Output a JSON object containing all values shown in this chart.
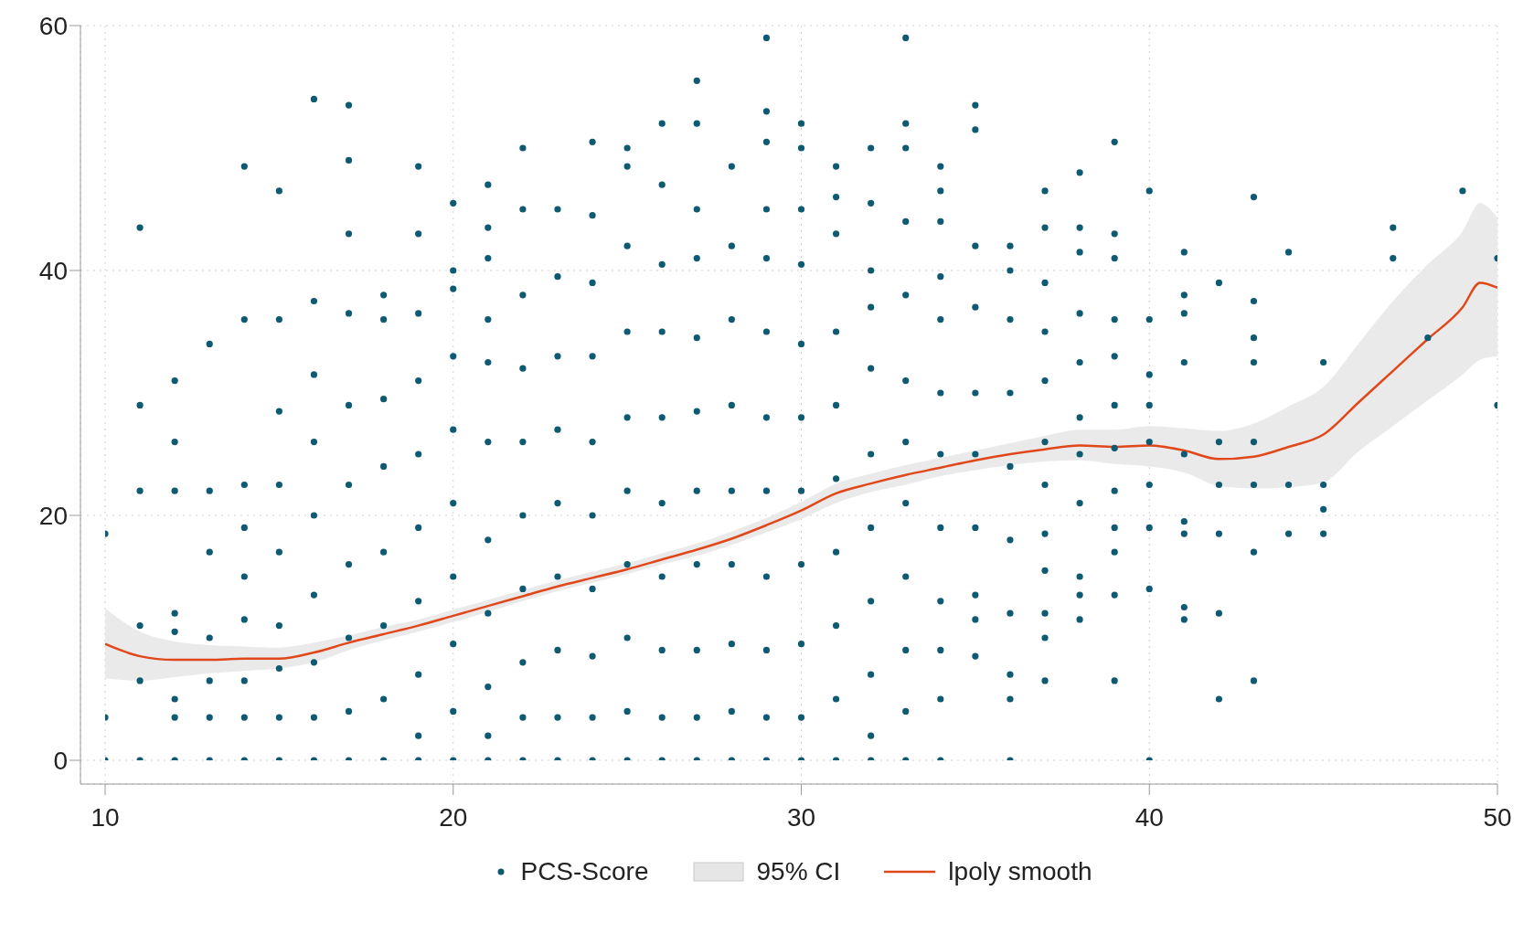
{
  "chart_data": {
    "type": "scatter",
    "xlim": [
      10,
      50
    ],
    "ylim": [
      0,
      60
    ],
    "xticks": [
      10,
      20,
      30,
      40,
      50
    ],
    "yticks": [
      0,
      20,
      40,
      60
    ],
    "grid": true,
    "legend": "bottom",
    "annotations": [
      "95% CI"
    ],
    "series": [
      {
        "name": "PCS-Score",
        "marker": "circle",
        "color": "#0f5a73",
        "x": [
          10,
          10,
          10,
          11,
          11,
          11,
          11,
          11,
          11,
          12,
          12,
          12,
          12,
          12,
          12,
          12,
          12,
          13,
          13,
          13,
          13,
          13,
          13,
          13,
          14,
          14,
          14,
          14,
          14,
          14,
          14,
          14,
          14,
          15,
          15,
          15,
          15,
          15,
          15,
          15,
          15,
          15,
          16,
          16,
          16,
          16,
          16,
          16,
          16,
          16,
          16,
          17,
          17,
          17,
          17,
          17,
          17,
          17,
          17,
          17,
          17,
          18,
          18,
          18,
          18,
          18,
          18,
          18,
          18,
          19,
          19,
          19,
          19,
          19,
          19,
          19,
          19,
          19,
          19,
          20,
          20,
          20,
          20,
          20,
          20,
          20,
          20,
          20,
          20,
          21,
          21,
          21,
          21,
          21,
          21,
          21,
          21,
          21,
          21,
          21,
          22,
          22,
          22,
          22,
          22,
          22,
          22,
          22,
          22,
          22,
          23,
          23,
          23,
          23,
          23,
          23,
          23,
          23,
          23,
          24,
          24,
          24,
          24,
          24,
          24,
          24,
          24,
          24,
          24,
          25,
          25,
          25,
          25,
          25,
          25,
          25,
          25,
          25,
          25,
          26,
          26,
          26,
          26,
          26,
          26,
          26,
          26,
          26,
          26,
          27,
          27,
          27,
          27,
          27,
          27,
          27,
          27,
          27,
          27,
          27,
          28,
          28,
          28,
          28,
          28,
          28,
          28,
          28,
          28,
          29,
          29,
          29,
          29,
          29,
          29,
          29,
          29,
          29,
          29,
          29,
          29,
          30,
          30,
          30,
          30,
          30,
          30,
          30,
          30,
          30,
          30,
          30,
          31,
          31,
          31,
          31,
          31,
          31,
          31,
          31,
          31,
          31,
          32,
          32,
          32,
          32,
          32,
          32,
          32,
          32,
          32,
          32,
          32,
          33,
          33,
          33,
          33,
          33,
          33,
          33,
          33,
          33,
          33,
          33,
          33,
          34,
          34,
          34,
          34,
          34,
          34,
          34,
          34,
          34,
          34,
          34,
          34,
          35,
          35,
          35,
          35,
          35,
          35,
          35,
          35,
          35,
          35,
          36,
          36,
          36,
          36,
          36,
          36,
          36,
          36,
          36,
          36,
          37,
          37,
          37,
          37,
          37,
          37,
          37,
          37,
          37,
          37,
          37,
          37,
          38,
          38,
          38,
          38,
          38,
          38,
          38,
          38,
          38,
          38,
          38,
          39,
          39,
          39,
          39,
          39,
          39,
          39,
          39,
          39,
          39,
          39,
          39,
          40,
          40,
          40,
          40,
          40,
          40,
          40,
          40,
          40,
          41,
          41,
          41,
          41,
          41,
          41,
          41,
          41,
          41,
          42,
          42,
          42,
          42,
          42,
          42,
          43,
          43,
          43,
          43,
          43,
          43,
          43,
          43,
          44,
          44,
          44,
          45,
          45,
          45,
          45,
          47,
          47,
          48,
          49,
          50,
          50
        ],
        "values": [
          0,
          3.5,
          18.5,
          0,
          6.5,
          11,
          22,
          29,
          43.5,
          0,
          3.5,
          5,
          10.5,
          12,
          22,
          26,
          31,
          0,
          3.5,
          6.5,
          10,
          17,
          22,
          34,
          0,
          3.5,
          6.5,
          11.5,
          15,
          19,
          22.5,
          36,
          48.5,
          0,
          3.5,
          7.5,
          11,
          17,
          22.5,
          28.5,
          36,
          46.5,
          0,
          3.5,
          8,
          13.5,
          20,
          26,
          31.5,
          37.5,
          54,
          0,
          4,
          10,
          16,
          22.5,
          29,
          36.5,
          43,
          49,
          53.5,
          0,
          5,
          11,
          17,
          24,
          29.5,
          36,
          38,
          0,
          2,
          7,
          13,
          19,
          25,
          31,
          36.5,
          43,
          48.5,
          0,
          4,
          9.5,
          15,
          21,
          27,
          33,
          38.5,
          40,
          45.5,
          0,
          2,
          6,
          12,
          18,
          26,
          32.5,
          36,
          41,
          43.5,
          47,
          0,
          3.5,
          8,
          14,
          20,
          26,
          32,
          38,
          45,
          50,
          0,
          3.5,
          9,
          15,
          21,
          27,
          33,
          39.5,
          45,
          0,
          3.5,
          8.5,
          14,
          20,
          26,
          33,
          39,
          44.5,
          50.5,
          0,
          4,
          10,
          16,
          22,
          28,
          35,
          42,
          48.5,
          50,
          0,
          3.5,
          9,
          15,
          21,
          28,
          35,
          40.5,
          47,
          52,
          0,
          3.5,
          9,
          16,
          22,
          28.5,
          34.5,
          41,
          45,
          52,
          55.5,
          0,
          4,
          9.5,
          16,
          22,
          29,
          36,
          42,
          48.5,
          0,
          3.5,
          9,
          15,
          22,
          28,
          35,
          41,
          45,
          50.5,
          53,
          59,
          0,
          3.5,
          9.5,
          16,
          22,
          28,
          34,
          40.5,
          45,
          50,
          52,
          0,
          5,
          11,
          17,
          23,
          29,
          35,
          43,
          46,
          48.5,
          0,
          2,
          7,
          13,
          19,
          25,
          32,
          37,
          40,
          45.5,
          50,
          0,
          4,
          9,
          15,
          21,
          26,
          31,
          38,
          44,
          50,
          52,
          59,
          0,
          5,
          9,
          13,
          19,
          25,
          30,
          36,
          39.5,
          44,
          46.5,
          48.5,
          8.5,
          11.5,
          13.5,
          19,
          25,
          30,
          37,
          42,
          51.5,
          53.5,
          0,
          5,
          7,
          12,
          18,
          24,
          30,
          36,
          40,
          42,
          6.5,
          10,
          12,
          15.5,
          18.5,
          22.5,
          26,
          31,
          35,
          39,
          43.5,
          46.5,
          11.5,
          13.5,
          15,
          21,
          25,
          28,
          32.5,
          36.5,
          41.5,
          43.5,
          48,
          6.5,
          13.5,
          17,
          19,
          22,
          25.5,
          29,
          33,
          36,
          41,
          43,
          50.5,
          0,
          14,
          19,
          22.5,
          26,
          29,
          31.5,
          36,
          46.5,
          11.5,
          12.5,
          18.5,
          19.5,
          25,
          32.5,
          36.5,
          38,
          41.5,
          5,
          12,
          18.5,
          22.5,
          26,
          39,
          6.5,
          17,
          22.5,
          26,
          32.5,
          34.5,
          37.5,
          46,
          18.5,
          22.5,
          41.5,
          18.5,
          20.5,
          22.5,
          32.5,
          41,
          43.5,
          34.5,
          46.5,
          29,
          41
        ]
      },
      {
        "name": "lpoly smooth",
        "type": "line",
        "marker": "none",
        "color": "#e0481b",
        "x": [
          10,
          11,
          12,
          13,
          14,
          15,
          16,
          17,
          18,
          19,
          20,
          21,
          22,
          23,
          24,
          25,
          26,
          27,
          28,
          29,
          30,
          31,
          32,
          33,
          34,
          35,
          36,
          37,
          38,
          39,
          40,
          41,
          42,
          43,
          44,
          45,
          46,
          47,
          48,
          49,
          49.5,
          50
        ],
        "lower": [
          6.7,
          6.5,
          6.8,
          7.1,
          7.3,
          7.5,
          8,
          9,
          9.8,
          10.5,
          11.3,
          12.1,
          13,
          13.8,
          14.5,
          15.2,
          16,
          16.7,
          17.6,
          18.6,
          19.7,
          21,
          21.9,
          22.5,
          23.2,
          23.7,
          24.1,
          24.4,
          24.5,
          24.2,
          24,
          23.5,
          22.4,
          22.2,
          22.3,
          22.7,
          25.2,
          27.3,
          29.4,
          31.5,
          32.7,
          33
        ],
        "upper": [
          12.4,
          10.5,
          9.7,
          9.4,
          9.3,
          9.2,
          9.6,
          10.2,
          10.9,
          11.5,
          12.3,
          13.1,
          13.9,
          14.7,
          15.4,
          16.1,
          16.9,
          17.7,
          18.7,
          19.8,
          21.1,
          22.6,
          23.4,
          24.1,
          24.7,
          25.3,
          25.9,
          26.5,
          27,
          27,
          27.3,
          27.1,
          26.9,
          27.5,
          28.9,
          30.5,
          34,
          37.5,
          40.5,
          43.2,
          45.5,
          44.3
        ],
        "values": [
          9.5,
          8.5,
          8.2,
          8.2,
          8.3,
          8.3,
          8.8,
          9.6,
          10.3,
          11,
          11.8,
          12.6,
          13.4,
          14.2,
          14.9,
          15.6,
          16.4,
          17.2,
          18.1,
          19.2,
          20.4,
          21.8,
          22.6,
          23.3,
          23.9,
          24.5,
          25,
          25.4,
          25.7,
          25.6,
          25.7,
          25.3,
          24.6,
          24.8,
          25.6,
          26.6,
          29.2,
          31.8,
          34.4,
          37,
          39,
          38.6
        ]
      }
    ]
  }
}
